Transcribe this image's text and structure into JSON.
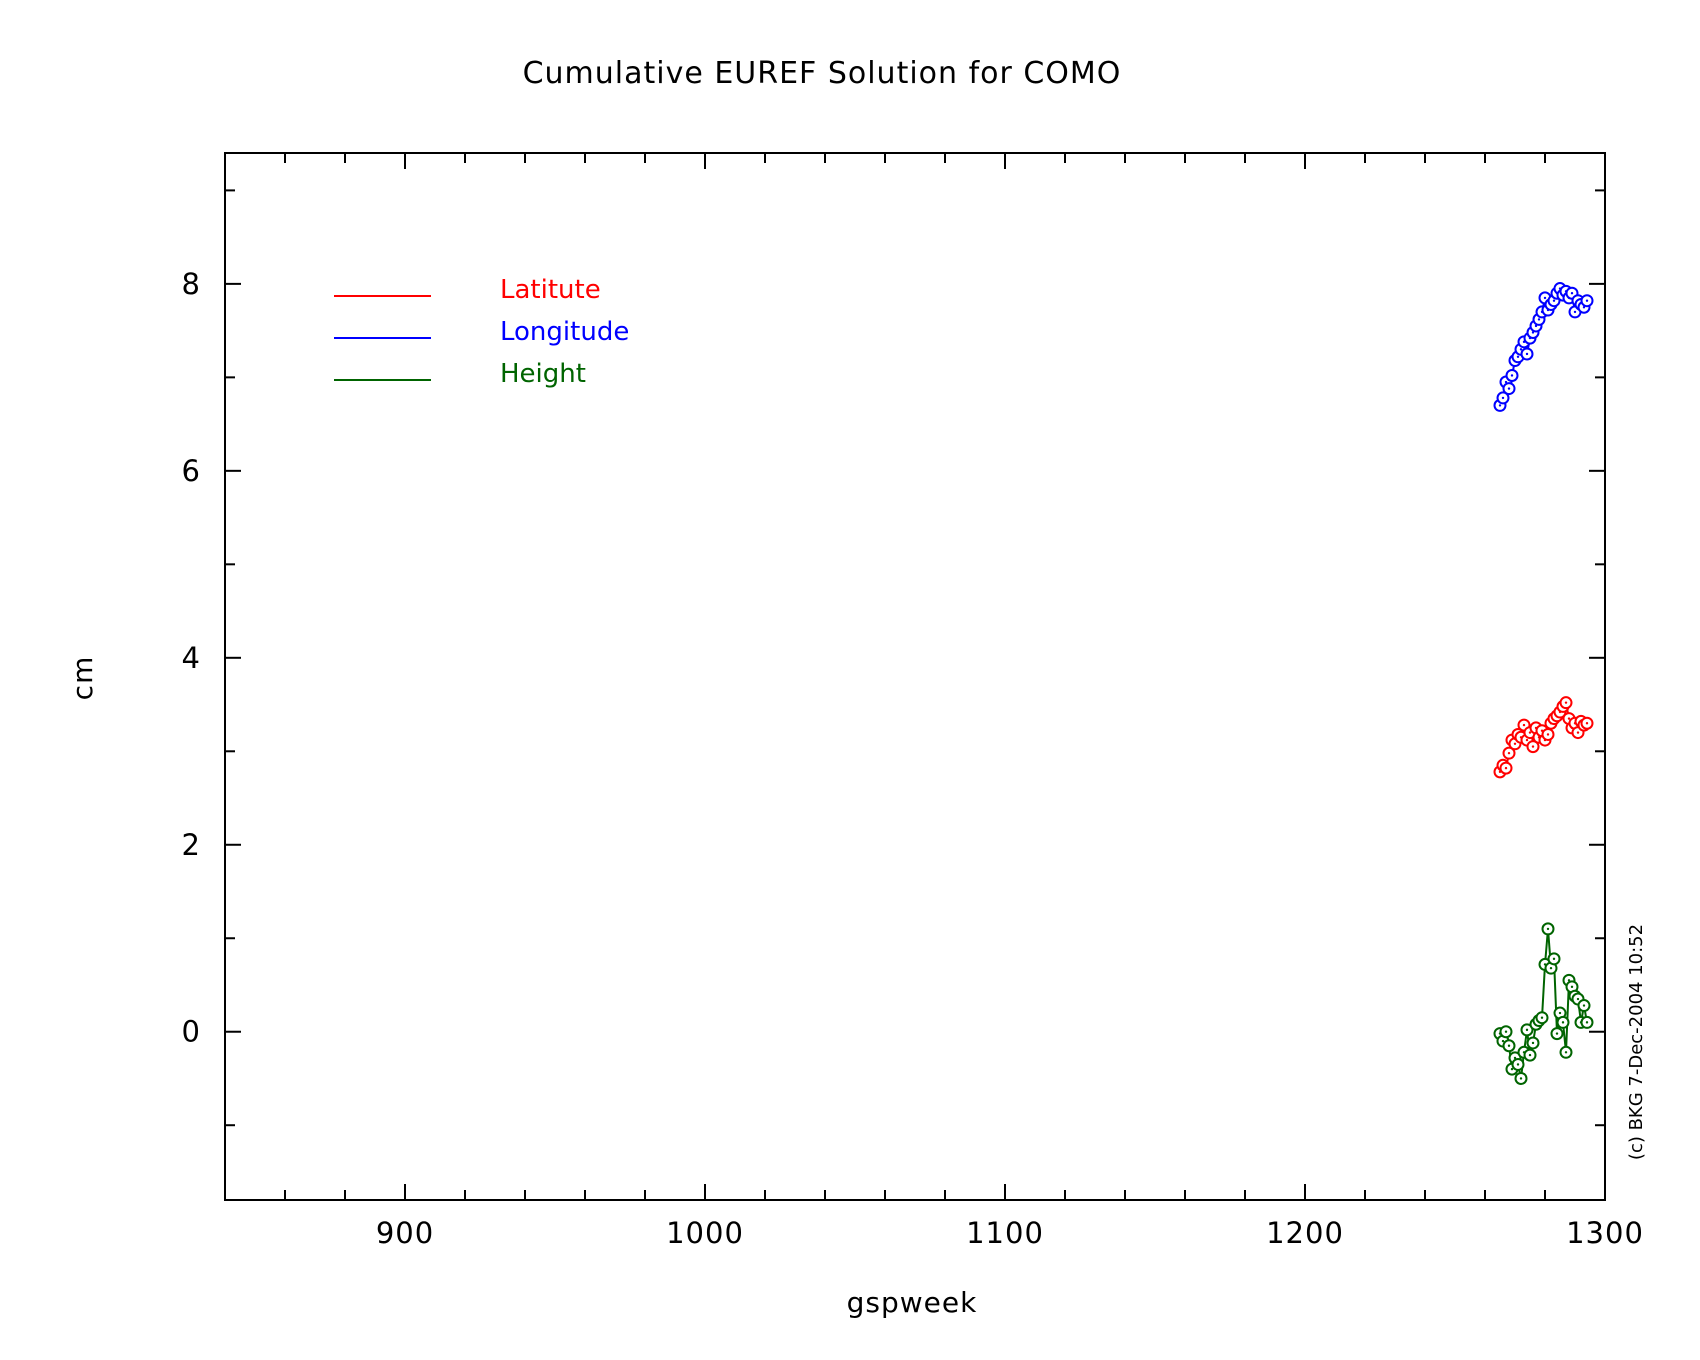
{
  "chart_data": {
    "type": "line",
    "title": "Cumulative EUREF Solution for COMO",
    "xlabel": "gspweek",
    "ylabel": "cm",
    "xlim": [
      840,
      1300
    ],
    "ylim": [
      -1.8,
      9.4
    ],
    "x_ticks": [
      900,
      1000,
      1100,
      1200,
      1300
    ],
    "y_ticks": [
      0,
      2,
      4,
      6,
      8
    ],
    "x_minor_step": 20,
    "y_minor_step": 1,
    "grid": false,
    "legend_position": "top-left",
    "markers": "open-circle",
    "credit": "(c) BKG 7-Dec-2004 10:52",
    "series": [
      {
        "name": "Latitute",
        "color": "#ff0000",
        "x": [
          1265,
          1266,
          1267,
          1268,
          1269,
          1270,
          1271,
          1272,
          1273,
          1274,
          1275,
          1276,
          1277,
          1278,
          1279,
          1280,
          1281,
          1282,
          1283,
          1284,
          1285,
          1286,
          1287,
          1288,
          1289,
          1290,
          1291,
          1292,
          1293,
          1294
        ],
        "y": [
          2.78,
          2.85,
          2.82,
          2.98,
          3.12,
          3.08,
          3.18,
          3.15,
          3.28,
          3.12,
          3.2,
          3.05,
          3.25,
          3.15,
          3.22,
          3.12,
          3.18,
          3.3,
          3.35,
          3.38,
          3.42,
          3.48,
          3.52,
          3.35,
          3.25,
          3.3,
          3.2,
          3.32,
          3.28,
          3.3
        ]
      },
      {
        "name": "Longitude",
        "color": "#0000ff",
        "x": [
          1265,
          1266,
          1267,
          1268,
          1269,
          1270,
          1271,
          1272,
          1273,
          1274,
          1275,
          1276,
          1277,
          1278,
          1279,
          1280,
          1281,
          1282,
          1283,
          1284,
          1285,
          1286,
          1287,
          1288,
          1289,
          1290,
          1291,
          1292,
          1293,
          1294
        ],
        "y": [
          6.7,
          6.78,
          6.95,
          6.88,
          7.02,
          7.18,
          7.22,
          7.3,
          7.38,
          7.25,
          7.42,
          7.48,
          7.55,
          7.62,
          7.7,
          7.85,
          7.72,
          7.78,
          7.82,
          7.9,
          7.95,
          7.88,
          7.92,
          7.85,
          7.9,
          7.7,
          7.82,
          7.78,
          7.75,
          7.82
        ]
      },
      {
        "name": "Height",
        "color": "#006400",
        "x": [
          1265,
          1266,
          1267,
          1268,
          1269,
          1270,
          1271,
          1272,
          1273,
          1274,
          1275,
          1276,
          1277,
          1278,
          1279,
          1280,
          1281,
          1282,
          1283,
          1284,
          1285,
          1286,
          1287,
          1288,
          1289,
          1290,
          1291,
          1292,
          1293,
          1294
        ],
        "y": [
          -0.02,
          -0.1,
          0.0,
          -0.15,
          -0.4,
          -0.28,
          -0.35,
          -0.5,
          -0.22,
          0.02,
          -0.25,
          -0.12,
          0.08,
          0.12,
          0.15,
          0.72,
          1.1,
          0.68,
          0.78,
          -0.02,
          0.2,
          0.1,
          -0.22,
          0.55,
          0.48,
          0.38,
          0.35,
          0.1,
          0.28,
          0.1
        ]
      }
    ]
  }
}
